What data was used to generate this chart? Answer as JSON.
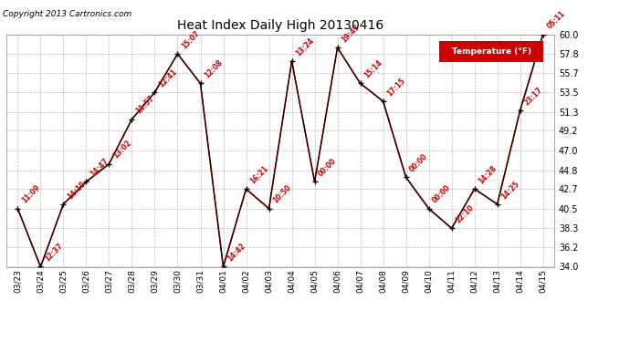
{
  "title": "Heat Index Daily High 20130416",
  "copyright": "Copyright 2013 Cartronics.com",
  "legend_label": "Temperature (°F)",
  "x_labels": [
    "03/23",
    "03/24",
    "03/25",
    "03/26",
    "03/27",
    "03/28",
    "03/29",
    "03/30",
    "03/31",
    "04/01",
    "04/02",
    "04/03",
    "04/04",
    "04/05",
    "04/06",
    "04/07",
    "04/08",
    "04/09",
    "04/10",
    "04/11",
    "04/12",
    "04/13",
    "04/14",
    "04/15"
  ],
  "values": [
    40.5,
    34.0,
    41.0,
    43.5,
    45.5,
    50.5,
    53.5,
    57.8,
    54.5,
    34.0,
    42.7,
    40.5,
    57.0,
    43.5,
    58.5,
    54.5,
    52.5,
    44.0,
    40.5,
    38.3,
    42.7,
    41.0,
    51.5,
    60.0
  ],
  "annotations": [
    "11:09",
    "12:37",
    "14:19",
    "14:47",
    "13:02",
    "11:57",
    "12:41",
    "15:07",
    "12:08",
    "14:42",
    "16:21",
    "10:50",
    "13:24",
    "00:00",
    "19:43",
    "15:14",
    "17:15",
    "00:00",
    "00:00",
    "22:10",
    "14:28",
    "14:25",
    "23:17",
    "05:11"
  ],
  "ylim": [
    34.0,
    60.0
  ],
  "yticks": [
    34.0,
    36.2,
    38.3,
    40.5,
    42.7,
    44.8,
    47.0,
    49.2,
    51.3,
    53.5,
    55.7,
    57.8,
    60.0
  ],
  "line_color": "#cc0000",
  "marker_color": "#000000",
  "annotation_color": "#cc0000",
  "bg_color": "#ffffff",
  "grid_color": "#bbbbbb",
  "title_color": "#000000",
  "legend_bg": "#cc0000",
  "legend_text_color": "#ffffff"
}
